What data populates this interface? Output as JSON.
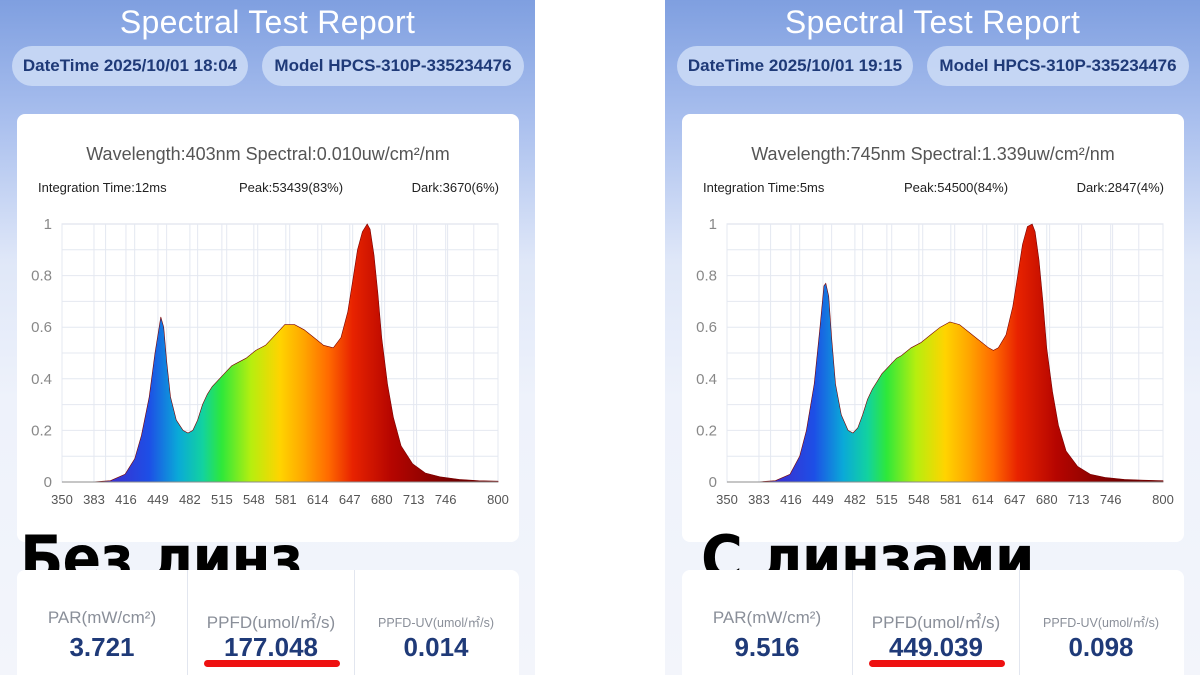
{
  "panels": [
    {
      "title": "Spectral Test Report",
      "datetime": "DateTime 2025/10/01 18:04",
      "model": "Model HPCS-310P-335234476",
      "wavelength_line": "Wavelength:403nm Spectral:0.010uw/cm²/nm",
      "integration": "Integration Time:12ms",
      "peak": "Peak:53439(83%)",
      "dark": "Dark:3670(6%)",
      "overlay": "Без линз",
      "stats": [
        {
          "label": "PAR(mW/cm²)",
          "value": "3.721"
        },
        {
          "label": "PPFD(umol/㎡/s)",
          "value": "177.048"
        },
        {
          "label": "PPFD-UV(umol/㎡/s)",
          "value": "0.014"
        }
      ]
    },
    {
      "title": "Spectral Test Report",
      "datetime": "DateTime 2025/10/01 19:15",
      "model": "Model HPCS-310P-335234476",
      "wavelength_line": "Wavelength:745nm Spectral:1.339uw/cm²/nm",
      "integration": "Integration Time:5ms",
      "peak": "Peak:54500(84%)",
      "dark": "Dark:2847(4%)",
      "overlay": "С линзами",
      "stats": [
        {
          "label": "PAR(mW/cm²)",
          "value": "9.516"
        },
        {
          "label": "PPFD(umol/㎡/s)",
          "value": "449.039"
        },
        {
          "label": "PPFD-UV(umol/㎡/s)",
          "value": "0.098"
        }
      ]
    }
  ],
  "chart_data": [
    {
      "type": "area",
      "x_ticks": [
        "350",
        "383",
        "416",
        "449",
        "482",
        "515",
        "548",
        "581",
        "614",
        "647",
        "680",
        "713",
        "746",
        "800"
      ],
      "y_ticks": [
        "0",
        "0.2",
        "0.4",
        "0.6",
        "0.8",
        "1"
      ],
      "xlim": [
        350,
        800
      ],
      "ylim": [
        0,
        1
      ],
      "grid": true,
      "series": [
        {
          "x": [
            350,
            380,
            400,
            415,
            425,
            432,
            440,
            446,
            452,
            455,
            458,
            462,
            468,
            475,
            480,
            485,
            490,
            495,
            500,
            505,
            510,
            515,
            520,
            525,
            530,
            540,
            550,
            560,
            570,
            575,
            580,
            590,
            600,
            610,
            620,
            630,
            638,
            645,
            650,
            655,
            660,
            665,
            668,
            672,
            676,
            680,
            686,
            692,
            700,
            712,
            725,
            740,
            760,
            780,
            800
          ],
          "y": [
            0,
            0,
            0.005,
            0.03,
            0.09,
            0.18,
            0.33,
            0.5,
            0.64,
            0.6,
            0.47,
            0.33,
            0.24,
            0.2,
            0.19,
            0.2,
            0.24,
            0.3,
            0.34,
            0.37,
            0.39,
            0.41,
            0.43,
            0.45,
            0.46,
            0.48,
            0.51,
            0.53,
            0.57,
            0.59,
            0.61,
            0.61,
            0.59,
            0.56,
            0.53,
            0.52,
            0.56,
            0.66,
            0.78,
            0.9,
            0.97,
            1.0,
            0.98,
            0.88,
            0.73,
            0.56,
            0.38,
            0.25,
            0.14,
            0.07,
            0.035,
            0.02,
            0.01,
            0.005,
            0.003
          ]
        }
      ]
    },
    {
      "type": "area",
      "x_ticks": [
        "350",
        "383",
        "416",
        "449",
        "482",
        "515",
        "548",
        "581",
        "614",
        "647",
        "680",
        "713",
        "746",
        "800"
      ],
      "y_ticks": [
        "0",
        "0.2",
        "0.4",
        "0.6",
        "0.8",
        "1"
      ],
      "xlim": [
        350,
        800
      ],
      "ylim": [
        0,
        1
      ],
      "grid": true,
      "series": [
        {
          "x": [
            350,
            380,
            400,
            415,
            425,
            432,
            440,
            446,
            450,
            452,
            455,
            458,
            462,
            468,
            475,
            480,
            485,
            490,
            495,
            500,
            505,
            510,
            515,
            520,
            525,
            530,
            540,
            550,
            560,
            570,
            575,
            580,
            590,
            600,
            610,
            620,
            625,
            630,
            638,
            645,
            650,
            655,
            660,
            665,
            668,
            672,
            676,
            680,
            686,
            692,
            700,
            712,
            725,
            740,
            760,
            780,
            800
          ],
          "y": [
            0,
            0,
            0.005,
            0.03,
            0.1,
            0.2,
            0.38,
            0.6,
            0.76,
            0.77,
            0.72,
            0.56,
            0.38,
            0.26,
            0.2,
            0.19,
            0.21,
            0.26,
            0.32,
            0.36,
            0.39,
            0.42,
            0.44,
            0.46,
            0.48,
            0.49,
            0.52,
            0.54,
            0.57,
            0.6,
            0.61,
            0.62,
            0.61,
            0.58,
            0.55,
            0.52,
            0.51,
            0.52,
            0.57,
            0.68,
            0.8,
            0.92,
            0.99,
            1.0,
            0.97,
            0.86,
            0.7,
            0.52,
            0.35,
            0.22,
            0.12,
            0.06,
            0.03,
            0.018,
            0.01,
            0.007,
            0.005
          ]
        }
      ]
    }
  ]
}
